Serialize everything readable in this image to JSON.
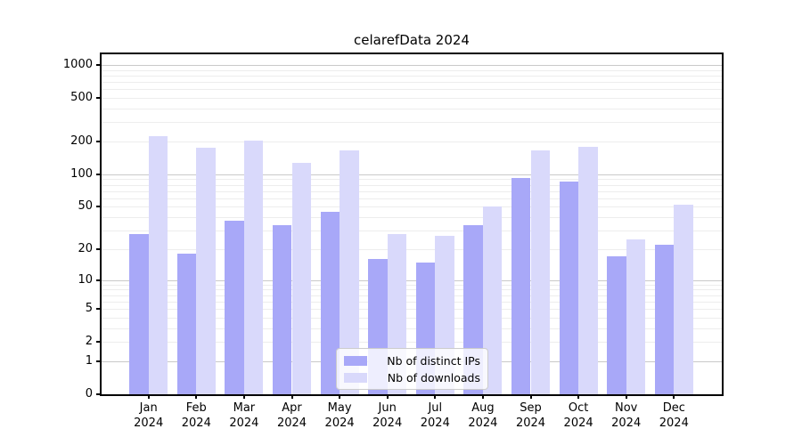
{
  "title": "celarefData 2024",
  "chart_data": {
    "type": "bar",
    "title": "celarefData 2024",
    "categories": [
      "Jan",
      "Feb",
      "Mar",
      "Apr",
      "May",
      "Jun",
      "Jul",
      "Aug",
      "Sep",
      "Oct",
      "Nov",
      "Dec"
    ],
    "year_label": "2024",
    "series": [
      {
        "name": "Nb of distinct IPs",
        "color": "#a8a8f8",
        "values": [
          28,
          18,
          37,
          34,
          45,
          16,
          15,
          34,
          93,
          85,
          17,
          22
        ]
      },
      {
        "name": "Nb of downloads",
        "color": "#d9d9fb",
        "values": [
          225,
          175,
          203,
          127,
          165,
          28,
          27,
          50,
          165,
          178,
          25,
          52
        ]
      }
    ],
    "yscale": "log10(1+x)",
    "yticks": [
      0,
      1,
      2,
      5,
      10,
      20,
      50,
      100,
      200,
      500,
      1000
    ],
    "ylim": [
      0,
      1250
    ],
    "grid": "both",
    "legend_position": "lower center",
    "xlabel": "",
    "ylabel": ""
  },
  "colors": {
    "background": "#ffffff",
    "bar_distinct_ips": "#a8a8f8",
    "bar_downloads": "#d9d9fb",
    "grid_major": "#c9c9c9",
    "grid_minor": "#ededed",
    "axis": "#000000",
    "legend_border": "#cccccc"
  }
}
